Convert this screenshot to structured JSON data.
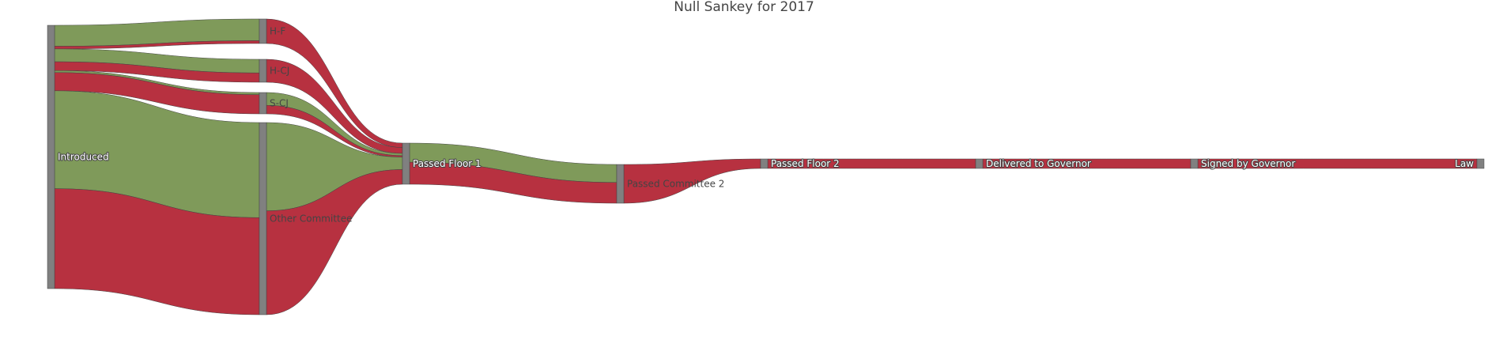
{
  "title": "Null Sankey for 2017",
  "colors": {
    "pass": "#7f9a5a",
    "fail": "#b73140",
    "node": "#808080"
  },
  "chart_data": {
    "type": "sankey",
    "title": "Null Sankey for 2017",
    "nodes": [
      {
        "id": "introduced",
        "label": "Introduced"
      },
      {
        "id": "hf",
        "label": "H-F"
      },
      {
        "id": "hcj",
        "label": "H-CJ"
      },
      {
        "id": "scj",
        "label": "S-CJ"
      },
      {
        "id": "other",
        "label": "Other Committee"
      },
      {
        "id": "pf1",
        "label": "Passed Floor 1"
      },
      {
        "id": "pc2",
        "label": "Passed Committee 2"
      },
      {
        "id": "pf2",
        "label": "Passed Floor 2"
      },
      {
        "id": "dtg",
        "label": "Delivered to Governor"
      },
      {
        "id": "sbg",
        "label": "Signed by Governor"
      },
      {
        "id": "law",
        "label": "Law"
      }
    ],
    "links": [
      {
        "source": "introduced",
        "target": "hf",
        "value": 31,
        "outcome": "pass"
      },
      {
        "source": "introduced",
        "target": "hf",
        "value": 4,
        "outcome": "fail"
      },
      {
        "source": "introduced",
        "target": "hcj",
        "value": 19,
        "outcome": "pass"
      },
      {
        "source": "introduced",
        "target": "hcj",
        "value": 13,
        "outcome": "fail"
      },
      {
        "source": "introduced",
        "target": "scj",
        "value": 3,
        "outcome": "pass"
      },
      {
        "source": "introduced",
        "target": "scj",
        "value": 27,
        "outcome": "fail"
      },
      {
        "source": "introduced",
        "target": "other",
        "value": 145,
        "outcome": "pass"
      },
      {
        "source": "introduced",
        "target": "other",
        "value": 148,
        "outcome": "fail"
      },
      {
        "source": "hf",
        "target": "pf1",
        "value": 6,
        "outcome": "fail"
      },
      {
        "source": "hcj",
        "target": "pf1",
        "value": 8,
        "outcome": "fail"
      },
      {
        "source": "scj",
        "target": "pf1",
        "value": 3,
        "outcome": "pass"
      },
      {
        "source": "scj",
        "target": "pf1",
        "value": 2,
        "outcome": "fail"
      },
      {
        "source": "other",
        "target": "pf1",
        "value": 17,
        "outcome": "pass"
      },
      {
        "source": "other",
        "target": "pf1",
        "value": 20,
        "outcome": "fail"
      },
      {
        "source": "pf1",
        "target": "pc2",
        "value": 26,
        "outcome": "pass"
      },
      {
        "source": "pf1",
        "target": "pc2",
        "value": 30,
        "outcome": "fail"
      },
      {
        "source": "pc2",
        "target": "pf2",
        "value": 13,
        "outcome": "fail"
      },
      {
        "source": "pf2",
        "target": "dtg",
        "value": 13,
        "outcome": "fail"
      },
      {
        "source": "dtg",
        "target": "sbg",
        "value": 13,
        "outcome": "fail"
      },
      {
        "source": "sbg",
        "target": "law",
        "value": 13,
        "outcome": "fail"
      }
    ]
  }
}
